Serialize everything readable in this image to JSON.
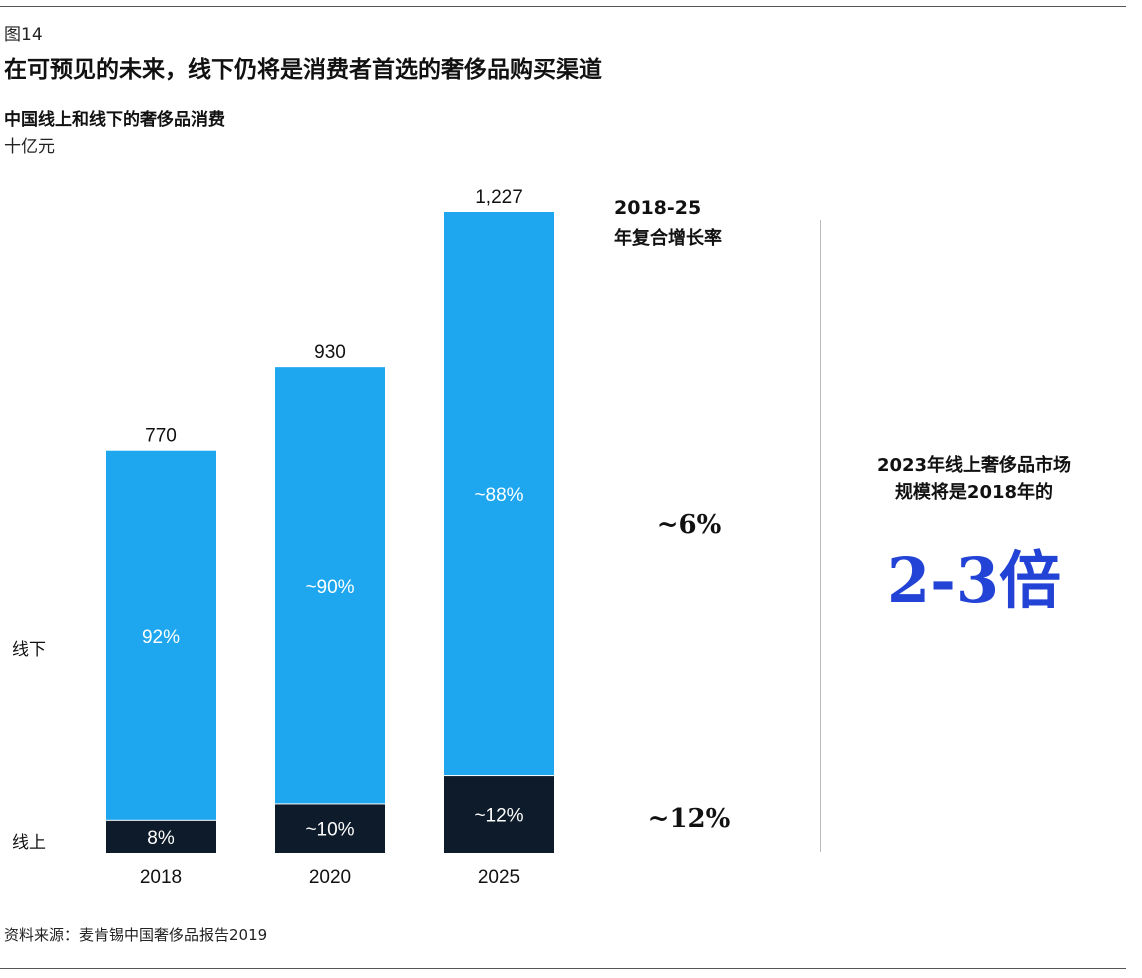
{
  "header": {
    "figure_label": "图14",
    "title": "在可预见的未来，线下仍将是消费者首选的奢侈品购买渠道"
  },
  "chart_data": {
    "type": "bar",
    "stacked": true,
    "subtitle": "中国线上和线下的奢侈品消费",
    "unit": "十亿元",
    "categories": [
      "2018",
      "2020",
      "2025"
    ],
    "totals": [
      770,
      930,
      1227
    ],
    "total_labels": [
      "770",
      "930",
      "1,227"
    ],
    "series": [
      {
        "name": "线下",
        "share": [
          0.92,
          0.9,
          0.88
        ],
        "labels": [
          "92%",
          "~90%",
          "~88%"
        ],
        "color": "#1ea7ef",
        "label_color": "#ffffff"
      },
      {
        "name": "线上",
        "share": [
          0.08,
          0.1,
          0.12
        ],
        "labels": [
          "8%",
          "~10%",
          "~12%"
        ],
        "color": "#0d1b2a",
        "label_color": "#ffffff"
      }
    ],
    "ylim": [
      0,
      1227
    ],
    "cagr_header": "2018-25",
    "cagr_subheader": "年复合增长率",
    "cagr": {
      "线下": "~6%",
      "线上": "~12%"
    }
  },
  "callout": {
    "text_line1": "2023年线上奢侈品市场",
    "text_line2": "规模将是2018年的",
    "big_value": "2-3倍",
    "big_color": "#2243d6"
  },
  "footer": {
    "source": "资料来源：麦肯锡中国奢侈品报告2019"
  }
}
